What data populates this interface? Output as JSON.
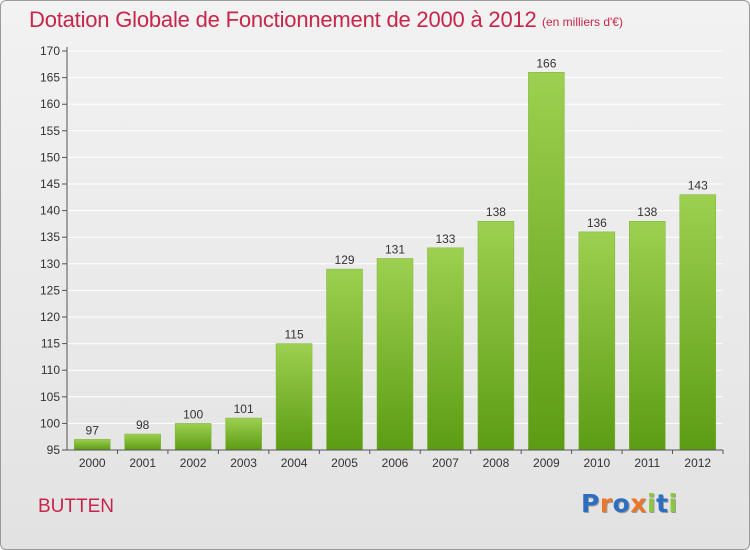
{
  "title": "Dotation Globale de Fonctionnement de 2000 à 2012",
  "subtitle": "(en milliers d'€)",
  "commune": "BUTTEN",
  "logo": {
    "text": "Proxiti",
    "letter_colors": [
      "#2c6fc0",
      "#e8772a",
      "#2c6fc0",
      "#e8772a",
      "#8cc63f",
      "#2c6fc0",
      "#8cc63f"
    ]
  },
  "colors": {
    "title": "#c8254a",
    "bar_top": "#9dd050",
    "bar_bottom": "#5c9c14",
    "grid": "#ffffff",
    "axis": "#555555"
  },
  "chart_data": {
    "type": "bar",
    "title": "Dotation Globale de Fonctionnement de 2000 à 2012",
    "subtitle": "(en milliers d'€)",
    "categories": [
      "2000",
      "2001",
      "2002",
      "2003",
      "2004",
      "2005",
      "2006",
      "2007",
      "2008",
      "2009",
      "2010",
      "2011",
      "2012"
    ],
    "values": [
      97,
      98,
      100,
      101,
      115,
      129,
      131,
      133,
      138,
      166,
      136,
      138,
      143
    ],
    "data_labels": [
      "97",
      "98",
      "100",
      "101",
      "115",
      "129",
      "131",
      "133",
      "138",
      "166",
      "136",
      "138",
      "143"
    ],
    "ylim": [
      95,
      170
    ],
    "yticks": [
      95,
      100,
      105,
      110,
      115,
      120,
      125,
      130,
      135,
      140,
      145,
      150,
      155,
      160,
      165,
      170
    ],
    "ytick_labels": [
      "95",
      "100",
      "105",
      "110",
      "115",
      "120",
      "125",
      "130",
      "135",
      "140",
      "145",
      "150",
      "155",
      "160",
      "165",
      "170"
    ],
    "xlabel": "",
    "ylabel": "",
    "grid": true,
    "legend": "none"
  }
}
